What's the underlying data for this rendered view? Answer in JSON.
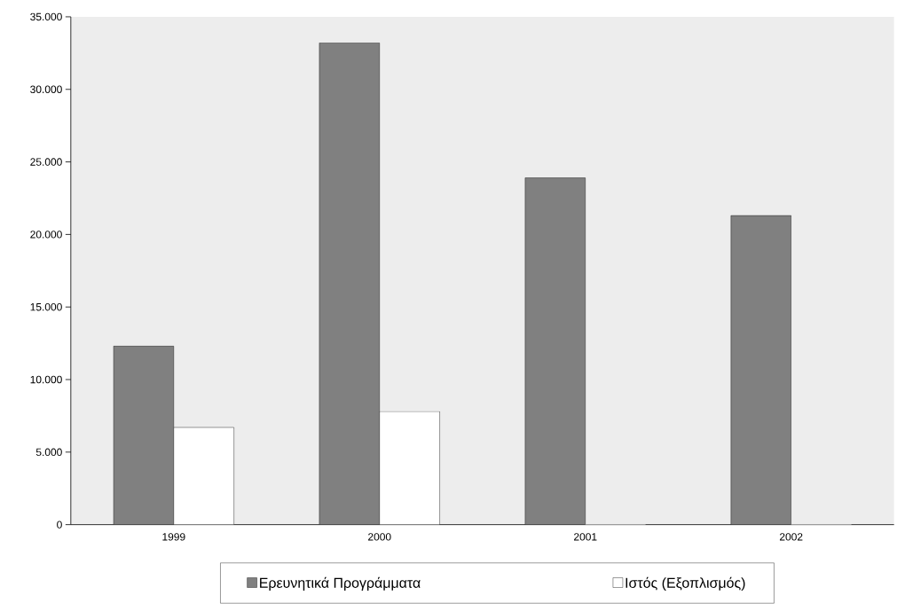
{
  "chart_data": {
    "type": "bar",
    "categories": [
      "1999",
      "2000",
      "2001",
      "2002"
    ],
    "series": [
      {
        "name": "Ερευνητικά Προγράμματα",
        "color": "#808080",
        "values": [
          12300,
          33200,
          23900,
          21300
        ]
      },
      {
        "name": "Ιστός (Εξοπλισμός)",
        "color": "#ffffff",
        "values": [
          6700,
          7800,
          0,
          0
        ]
      }
    ],
    "ylim": [
      0,
      35000
    ],
    "yticks": [
      0,
      {
        "value": 5000,
        "label": "5.000"
      },
      {
        "value": 10000,
        "label": "10.000"
      },
      {
        "value": 15000,
        "label": "15.000"
      },
      {
        "value": 20000,
        "label": "20.000"
      },
      {
        "value": 25000,
        "label": "25.000"
      },
      {
        "value": 30000,
        "label": "30.000"
      },
      {
        "value": 35000,
        "label": "35.000"
      }
    ],
    "grid": false,
    "legend": "bottom"
  }
}
